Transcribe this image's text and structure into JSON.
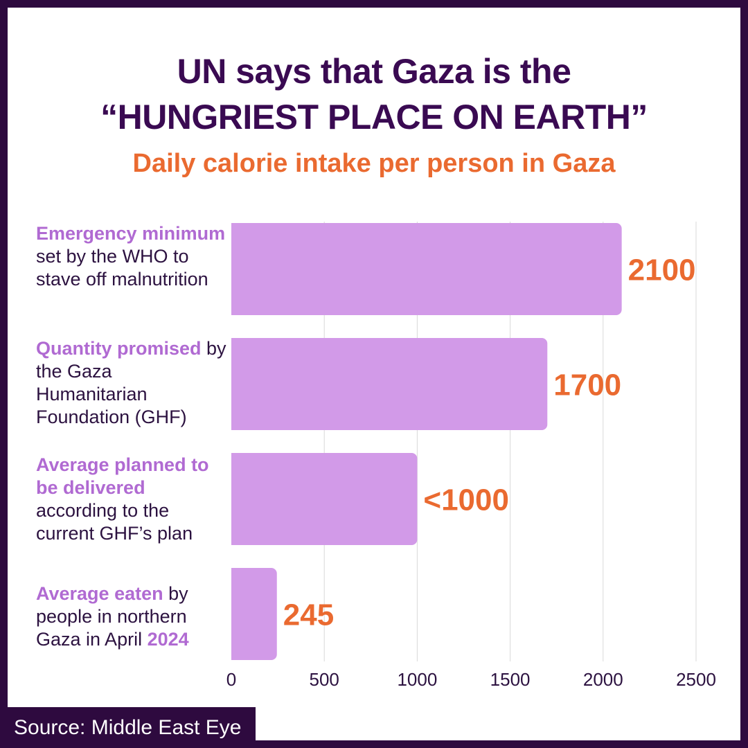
{
  "header": {
    "title_line1": "UN says that Gaza is the",
    "title_line2": "“HUNGRIEST PLACE ON EARTH”",
    "subtitle": "Daily calorie intake per person in Gaza"
  },
  "categories": [
    {
      "highlight": "Emergency minimum",
      "rest": " set by the WHO to stave off malnutrition"
    },
    {
      "highlight": "Quantity promised",
      "rest": " by the Gaza Humanitarian Foundation (GHF)"
    },
    {
      "highlight": "Average planned to be delivered",
      "rest": " according to the current GHF’s plan"
    },
    {
      "highlight": "Average eaten",
      "rest": " by people in northern Gaza in April ",
      "highlight2": "2024"
    }
  ],
  "chart_data": {
    "type": "bar",
    "orientation": "horizontal",
    "title": "Daily calorie intake per person in Gaza",
    "categories": [
      "Emergency minimum set by the WHO to stave off malnutrition",
      "Quantity promised by the Gaza Humanitarian Foundation (GHF)",
      "Average planned to be delivered according to the current GHF’s plan",
      "Average eaten by people in northern Gaza in April 2024"
    ],
    "values": [
      2100,
      1700,
      1000,
      245
    ],
    "value_labels": [
      "2100",
      "1700",
      "<1000",
      "245"
    ],
    "xlim": [
      0,
      2500
    ],
    "xticks": [
      0,
      500,
      1000,
      1500,
      2000,
      2500
    ],
    "xtick_labels": [
      "0",
      "500",
      "1000",
      "1500",
      "2000",
      "2500"
    ],
    "grid": "vertical",
    "xlabel": "",
    "ylabel": ""
  },
  "colors": {
    "bar": "#d29ae8",
    "value_label": "#ea6a30",
    "gridline": "#d9d9d9",
    "title": "#3a0a52",
    "subtitle": "#ea6a30",
    "border": "#2e0a3f"
  },
  "footer": {
    "source": "Source: Middle East Eye"
  }
}
